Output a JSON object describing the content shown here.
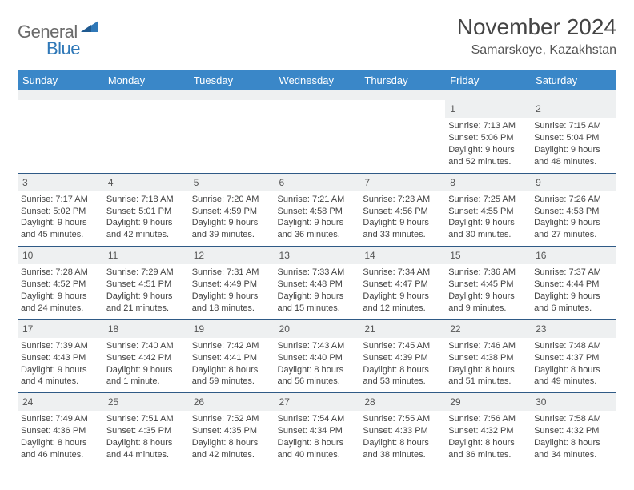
{
  "brand": {
    "part1": "General",
    "part2": "Blue"
  },
  "title": "November 2024",
  "location": "Samarskoye, Kazakhstan",
  "colors": {
    "header_bg": "#3a87c8",
    "brand_gray": "#6b6b6b",
    "brand_blue": "#2f78b8",
    "row_stripe": "#eef0f1",
    "border": "#2f5a86"
  },
  "day_names": [
    "Sunday",
    "Monday",
    "Tuesday",
    "Wednesday",
    "Thursday",
    "Friday",
    "Saturday"
  ],
  "weeks": [
    [
      {
        "n": "",
        "sr": "",
        "ss": "",
        "dl": ""
      },
      {
        "n": "",
        "sr": "",
        "ss": "",
        "dl": ""
      },
      {
        "n": "",
        "sr": "",
        "ss": "",
        "dl": ""
      },
      {
        "n": "",
        "sr": "",
        "ss": "",
        "dl": ""
      },
      {
        "n": "",
        "sr": "",
        "ss": "",
        "dl": ""
      },
      {
        "n": "1",
        "sr": "Sunrise: 7:13 AM",
        "ss": "Sunset: 5:06 PM",
        "dl": "Daylight: 9 hours and 52 minutes."
      },
      {
        "n": "2",
        "sr": "Sunrise: 7:15 AM",
        "ss": "Sunset: 5:04 PM",
        "dl": "Daylight: 9 hours and 48 minutes."
      }
    ],
    [
      {
        "n": "3",
        "sr": "Sunrise: 7:17 AM",
        "ss": "Sunset: 5:02 PM",
        "dl": "Daylight: 9 hours and 45 minutes."
      },
      {
        "n": "4",
        "sr": "Sunrise: 7:18 AM",
        "ss": "Sunset: 5:01 PM",
        "dl": "Daylight: 9 hours and 42 minutes."
      },
      {
        "n": "5",
        "sr": "Sunrise: 7:20 AM",
        "ss": "Sunset: 4:59 PM",
        "dl": "Daylight: 9 hours and 39 minutes."
      },
      {
        "n": "6",
        "sr": "Sunrise: 7:21 AM",
        "ss": "Sunset: 4:58 PM",
        "dl": "Daylight: 9 hours and 36 minutes."
      },
      {
        "n": "7",
        "sr": "Sunrise: 7:23 AM",
        "ss": "Sunset: 4:56 PM",
        "dl": "Daylight: 9 hours and 33 minutes."
      },
      {
        "n": "8",
        "sr": "Sunrise: 7:25 AM",
        "ss": "Sunset: 4:55 PM",
        "dl": "Daylight: 9 hours and 30 minutes."
      },
      {
        "n": "9",
        "sr": "Sunrise: 7:26 AM",
        "ss": "Sunset: 4:53 PM",
        "dl": "Daylight: 9 hours and 27 minutes."
      }
    ],
    [
      {
        "n": "10",
        "sr": "Sunrise: 7:28 AM",
        "ss": "Sunset: 4:52 PM",
        "dl": "Daylight: 9 hours and 24 minutes."
      },
      {
        "n": "11",
        "sr": "Sunrise: 7:29 AM",
        "ss": "Sunset: 4:51 PM",
        "dl": "Daylight: 9 hours and 21 minutes."
      },
      {
        "n": "12",
        "sr": "Sunrise: 7:31 AM",
        "ss": "Sunset: 4:49 PM",
        "dl": "Daylight: 9 hours and 18 minutes."
      },
      {
        "n": "13",
        "sr": "Sunrise: 7:33 AM",
        "ss": "Sunset: 4:48 PM",
        "dl": "Daylight: 9 hours and 15 minutes."
      },
      {
        "n": "14",
        "sr": "Sunrise: 7:34 AM",
        "ss": "Sunset: 4:47 PM",
        "dl": "Daylight: 9 hours and 12 minutes."
      },
      {
        "n": "15",
        "sr": "Sunrise: 7:36 AM",
        "ss": "Sunset: 4:45 PM",
        "dl": "Daylight: 9 hours and 9 minutes."
      },
      {
        "n": "16",
        "sr": "Sunrise: 7:37 AM",
        "ss": "Sunset: 4:44 PM",
        "dl": "Daylight: 9 hours and 6 minutes."
      }
    ],
    [
      {
        "n": "17",
        "sr": "Sunrise: 7:39 AM",
        "ss": "Sunset: 4:43 PM",
        "dl": "Daylight: 9 hours and 4 minutes."
      },
      {
        "n": "18",
        "sr": "Sunrise: 7:40 AM",
        "ss": "Sunset: 4:42 PM",
        "dl": "Daylight: 9 hours and 1 minute."
      },
      {
        "n": "19",
        "sr": "Sunrise: 7:42 AM",
        "ss": "Sunset: 4:41 PM",
        "dl": "Daylight: 8 hours and 59 minutes."
      },
      {
        "n": "20",
        "sr": "Sunrise: 7:43 AM",
        "ss": "Sunset: 4:40 PM",
        "dl": "Daylight: 8 hours and 56 minutes."
      },
      {
        "n": "21",
        "sr": "Sunrise: 7:45 AM",
        "ss": "Sunset: 4:39 PM",
        "dl": "Daylight: 8 hours and 53 minutes."
      },
      {
        "n": "22",
        "sr": "Sunrise: 7:46 AM",
        "ss": "Sunset: 4:38 PM",
        "dl": "Daylight: 8 hours and 51 minutes."
      },
      {
        "n": "23",
        "sr": "Sunrise: 7:48 AM",
        "ss": "Sunset: 4:37 PM",
        "dl": "Daylight: 8 hours and 49 minutes."
      }
    ],
    [
      {
        "n": "24",
        "sr": "Sunrise: 7:49 AM",
        "ss": "Sunset: 4:36 PM",
        "dl": "Daylight: 8 hours and 46 minutes."
      },
      {
        "n": "25",
        "sr": "Sunrise: 7:51 AM",
        "ss": "Sunset: 4:35 PM",
        "dl": "Daylight: 8 hours and 44 minutes."
      },
      {
        "n": "26",
        "sr": "Sunrise: 7:52 AM",
        "ss": "Sunset: 4:35 PM",
        "dl": "Daylight: 8 hours and 42 minutes."
      },
      {
        "n": "27",
        "sr": "Sunrise: 7:54 AM",
        "ss": "Sunset: 4:34 PM",
        "dl": "Daylight: 8 hours and 40 minutes."
      },
      {
        "n": "28",
        "sr": "Sunrise: 7:55 AM",
        "ss": "Sunset: 4:33 PM",
        "dl": "Daylight: 8 hours and 38 minutes."
      },
      {
        "n": "29",
        "sr": "Sunrise: 7:56 AM",
        "ss": "Sunset: 4:32 PM",
        "dl": "Daylight: 8 hours and 36 minutes."
      },
      {
        "n": "30",
        "sr": "Sunrise: 7:58 AM",
        "ss": "Sunset: 4:32 PM",
        "dl": "Daylight: 8 hours and 34 minutes."
      }
    ]
  ]
}
